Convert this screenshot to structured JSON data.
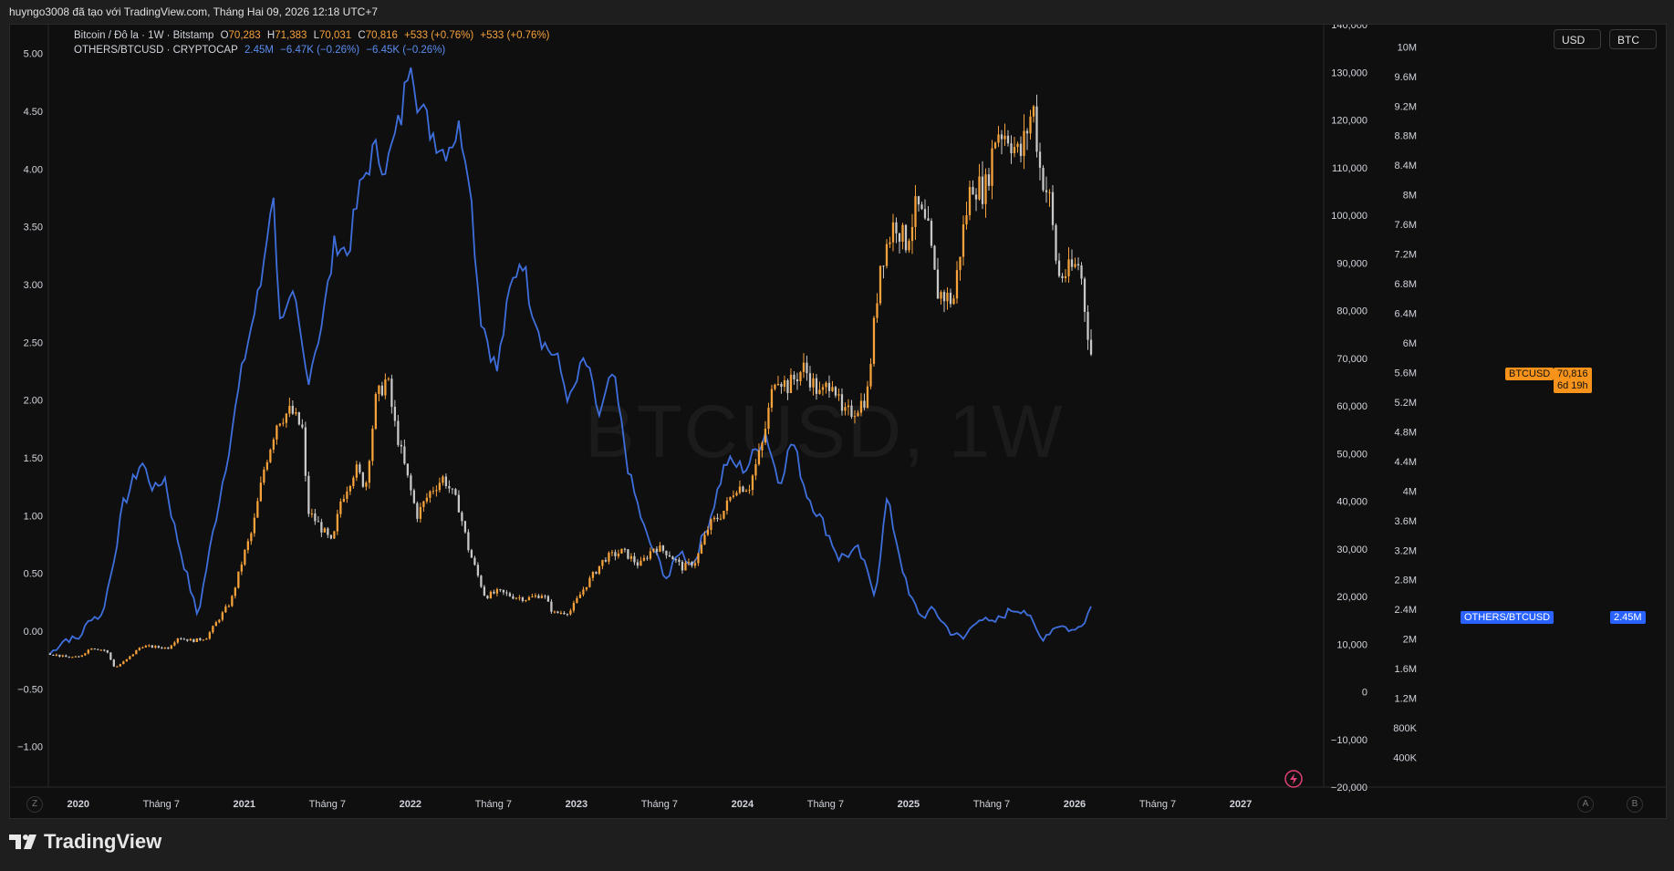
{
  "header": {
    "attribution": "huyngo3008 đã tạo với TradingView.com, Tháng Hai 09, 2026 12:18 UTC+7"
  },
  "legend": {
    "btc": {
      "title": "Bitcoin / Đô la · 1W · Bitstamp",
      "o_label": "O",
      "o_value": "70,283",
      "h_label": "H",
      "h_value": "71,383",
      "l_label": "L",
      "l_value": "70,031",
      "c_label": "C",
      "c_value": "70,816",
      "change1": "+533 (+0.76%)",
      "change2": "+533 (+0.76%)"
    },
    "others": {
      "title": "OTHERS/BTCUSD · CRYPTOCAP",
      "value": "2.45M",
      "change1": "−6.47K (−0.26%)",
      "change2": "−6.45K (−0.26%)"
    }
  },
  "watermark": "BTCUSD, 1W",
  "scale_buttons": {
    "usd": "USD",
    "btc": "BTC"
  },
  "tags": {
    "btc_name": "BTCUSD",
    "btc_price": "70,816",
    "btc_countdown": "6d 19h",
    "others_name": "OTHERS/BTCUSD",
    "others_value": "2.45M"
  },
  "bottom_buttons": {
    "z": "Z",
    "a": "A",
    "b": "B"
  },
  "footer": {
    "logo_text": "TradingView"
  },
  "colors": {
    "background": "#0f0f0f",
    "up_candle": "#f7a23a",
    "down_candle": "#c8c8c8",
    "others_line": "#3f6fdc",
    "btc_tag": "#f7931a",
    "others_tag": "#2962ff"
  },
  "chart_data": {
    "type": "line",
    "x_ticks": [
      "2020",
      "Tháng 7",
      "2021",
      "Tháng 7",
      "2022",
      "Tháng 7",
      "2023",
      "Tháng 7",
      "2024",
      "Tháng 7",
      "2025",
      "Tháng 7",
      "2026",
      "Tháng 7",
      "2027"
    ],
    "x_tick_times": [
      2020.0,
      2020.5,
      2021.0,
      2021.5,
      2022.0,
      2022.5,
      2023.0,
      2023.5,
      2024.0,
      2024.5,
      2025.0,
      2025.5,
      2026.0,
      2026.5,
      2027.0
    ],
    "xlim": [
      2019.82,
      2027.5
    ],
    "left_axis": {
      "ticks": [
        "5.00",
        "4.50",
        "4.00",
        "3.50",
        "3.00",
        "2.50",
        "2.00",
        "1.50",
        "1.00",
        "0.50",
        "0.00",
        "−0.50",
        "−1.00"
      ],
      "tick_values": [
        5.0,
        4.5,
        4.0,
        3.5,
        3.0,
        2.5,
        2.0,
        1.5,
        1.0,
        0.5,
        0.0,
        -0.5,
        -1.0
      ],
      "ylim": [
        -1.35,
        5.25
      ]
    },
    "usd_axis": {
      "ticks": [
        "140,000",
        "130,000",
        "120,000",
        "110,000",
        "100,000",
        "90,000",
        "80,000",
        "70,000",
        "60,000",
        "50,000",
        "40,000",
        "30,000",
        "20,000",
        "10,000",
        "0",
        "−10,000",
        "−20,000"
      ],
      "tick_values": [
        140000,
        130000,
        120000,
        110000,
        100000,
        90000,
        80000,
        70000,
        60000,
        50000,
        40000,
        30000,
        20000,
        10000,
        0,
        -10000,
        -20000
      ],
      "ylim": [
        -20000,
        140000
      ]
    },
    "btc_axis": {
      "ticks": [
        "10M",
        "9.6M",
        "9.2M",
        "8.8M",
        "8.4M",
        "8M",
        "7.6M",
        "7.2M",
        "6.8M",
        "6.4M",
        "6M",
        "5.6M",
        "5.2M",
        "4.8M",
        "4.4M",
        "4M",
        "3.6M",
        "3.2M",
        "2.8M",
        "2.4M",
        "2M",
        "1.6M",
        "1.2M",
        "800K",
        "400K"
      ],
      "tick_values": [
        10.0,
        9.6,
        9.2,
        8.8,
        8.4,
        8.0,
        7.6,
        7.2,
        6.8,
        6.4,
        6.0,
        5.6,
        5.2,
        4.8,
        4.4,
        4.0,
        3.6,
        3.2,
        2.8,
        2.4,
        2.0,
        1.6,
        1.2,
        0.8,
        0.4
      ],
      "unit": "millions",
      "ylim": [
        0.0,
        10.3
      ]
    },
    "series": [
      {
        "name": "Bitcoin / Đô la · 1W · Bitstamp",
        "kind": "candlestick",
        "axis": "usd",
        "points": [
          [
            2019.83,
            8000
          ],
          [
            2019.92,
            7300
          ],
          [
            2020.0,
            7200
          ],
          [
            2020.08,
            9300
          ],
          [
            2020.17,
            8600
          ],
          [
            2020.22,
            5000
          ],
          [
            2020.29,
            6700
          ],
          [
            2020.38,
            9600
          ],
          [
            2020.46,
            9400
          ],
          [
            2020.54,
            9200
          ],
          [
            2020.6,
            11400
          ],
          [
            2020.69,
            10700
          ],
          [
            2020.77,
            11300
          ],
          [
            2020.85,
            15500
          ],
          [
            2020.92,
            19000
          ],
          [
            2021.0,
            29000
          ],
          [
            2021.05,
            34000
          ],
          [
            2021.12,
            47000
          ],
          [
            2021.2,
            57000
          ],
          [
            2021.28,
            59000
          ],
          [
            2021.35,
            55000
          ],
          [
            2021.38,
            38000
          ],
          [
            2021.45,
            35000
          ],
          [
            2021.53,
            31000
          ],
          [
            2021.58,
            40000
          ],
          [
            2021.67,
            47000
          ],
          [
            2021.73,
            43000
          ],
          [
            2021.79,
            61000
          ],
          [
            2021.86,
            66000
          ],
          [
            2021.9,
            57000
          ],
          [
            2021.96,
            48000
          ],
          [
            2022.04,
            37000
          ],
          [
            2022.12,
            42000
          ],
          [
            2022.2,
            45000
          ],
          [
            2022.29,
            39000
          ],
          [
            2022.35,
            30000
          ],
          [
            2022.45,
            20000
          ],
          [
            2022.53,
            21000
          ],
          [
            2022.62,
            20000
          ],
          [
            2022.7,
            19500
          ],
          [
            2022.8,
            20500
          ],
          [
            2022.86,
            16500
          ],
          [
            2022.96,
            16800
          ],
          [
            2023.05,
            22000
          ],
          [
            2023.17,
            28000
          ],
          [
            2023.28,
            29500
          ],
          [
            2023.38,
            26500
          ],
          [
            2023.47,
            30500
          ],
          [
            2023.55,
            29200
          ],
          [
            2023.64,
            26000
          ],
          [
            2023.72,
            27500
          ],
          [
            2023.8,
            35000
          ],
          [
            2023.88,
            37500
          ],
          [
            2023.96,
            43000
          ],
          [
            2024.04,
            43000
          ],
          [
            2024.12,
            52000
          ],
          [
            2024.2,
            67000
          ],
          [
            2024.27,
            64000
          ],
          [
            2024.37,
            68000
          ],
          [
            2024.47,
            62000
          ],
          [
            2024.54,
            66000
          ],
          [
            2024.6,
            58000
          ],
          [
            2024.67,
            59000
          ],
          [
            2024.75,
            62000
          ],
          [
            2024.83,
            90000
          ],
          [
            2024.92,
            99000
          ],
          [
            2024.98,
            94000
          ],
          [
            2025.05,
            102000
          ],
          [
            2025.12,
            96000
          ],
          [
            2025.17,
            84000
          ],
          [
            2025.27,
            82000
          ],
          [
            2025.32,
            95000
          ],
          [
            2025.38,
            107000
          ],
          [
            2025.46,
            105000
          ],
          [
            2025.53,
            118000
          ],
          [
            2025.6,
            117000
          ],
          [
            2025.67,
            112000
          ],
          [
            2025.75,
            123000
          ],
          [
            2025.79,
            110000
          ],
          [
            2025.85,
            103000
          ],
          [
            2025.9,
            87000
          ],
          [
            2025.96,
            88000
          ],
          [
            2026.03,
            90000
          ],
          [
            2026.07,
            78000
          ],
          [
            2026.1,
            70816
          ]
        ]
      },
      {
        "name": "OTHERS/BTCUSD · CRYPTOCAP",
        "kind": "line",
        "axis": "btc",
        "points": [
          [
            2019.83,
            1.8
          ],
          [
            2019.92,
            2.0
          ],
          [
            2020.0,
            2.0
          ],
          [
            2020.08,
            2.3
          ],
          [
            2020.14,
            2.3
          ],
          [
            2020.2,
            2.9
          ],
          [
            2020.27,
            3.8
          ],
          [
            2020.38,
            4.4
          ],
          [
            2020.46,
            4.0
          ],
          [
            2020.52,
            4.2
          ],
          [
            2020.57,
            3.6
          ],
          [
            2020.65,
            2.9
          ],
          [
            2020.72,
            2.3
          ],
          [
            2020.8,
            3.3
          ],
          [
            2020.9,
            4.5
          ],
          [
            2021.0,
            5.8
          ],
          [
            2021.1,
            6.8
          ],
          [
            2021.17,
            8.1
          ],
          [
            2021.22,
            6.2
          ],
          [
            2021.3,
            6.6
          ],
          [
            2021.38,
            5.5
          ],
          [
            2021.47,
            6.3
          ],
          [
            2021.55,
            7.4
          ],
          [
            2021.62,
            7.2
          ],
          [
            2021.7,
            8.1
          ],
          [
            2021.78,
            8.6
          ],
          [
            2021.86,
            8.4
          ],
          [
            2021.95,
            9.1
          ],
          [
            2022.0,
            10.0
          ],
          [
            2022.05,
            9.2
          ],
          [
            2022.12,
            8.9
          ],
          [
            2022.2,
            8.6
          ],
          [
            2022.3,
            8.9
          ],
          [
            2022.35,
            8.4
          ],
          [
            2022.42,
            6.4
          ],
          [
            2022.52,
            5.6
          ],
          [
            2022.6,
            6.7
          ],
          [
            2022.67,
            7.2
          ],
          [
            2022.72,
            6.6
          ],
          [
            2022.8,
            6.0
          ],
          [
            2022.88,
            5.8
          ],
          [
            2022.96,
            5.2
          ],
          [
            2023.05,
            5.8
          ],
          [
            2023.14,
            5.0
          ],
          [
            2023.22,
            5.6
          ],
          [
            2023.32,
            4.2
          ],
          [
            2023.42,
            3.4
          ],
          [
            2023.55,
            2.8
          ],
          [
            2023.62,
            3.2
          ],
          [
            2023.7,
            3.0
          ],
          [
            2023.8,
            3.6
          ],
          [
            2023.9,
            4.4
          ],
          [
            2024.02,
            4.3
          ],
          [
            2024.14,
            4.8
          ],
          [
            2024.22,
            4.1
          ],
          [
            2024.3,
            4.7
          ],
          [
            2024.38,
            4.0
          ],
          [
            2024.5,
            3.5
          ],
          [
            2024.58,
            3.1
          ],
          [
            2024.7,
            3.2
          ],
          [
            2024.8,
            2.6
          ],
          [
            2024.87,
            3.9
          ],
          [
            2024.92,
            3.4
          ],
          [
            2025.0,
            2.6
          ],
          [
            2025.08,
            2.3
          ],
          [
            2025.15,
            2.4
          ],
          [
            2025.25,
            2.1
          ],
          [
            2025.33,
            2.0
          ],
          [
            2025.42,
            2.3
          ],
          [
            2025.5,
            2.2
          ],
          [
            2025.62,
            2.4
          ],
          [
            2025.7,
            2.4
          ],
          [
            2025.8,
            2.0
          ],
          [
            2025.9,
            2.2
          ],
          [
            2026.0,
            2.1
          ],
          [
            2026.07,
            2.3
          ],
          [
            2026.1,
            2.45
          ]
        ]
      }
    ]
  }
}
